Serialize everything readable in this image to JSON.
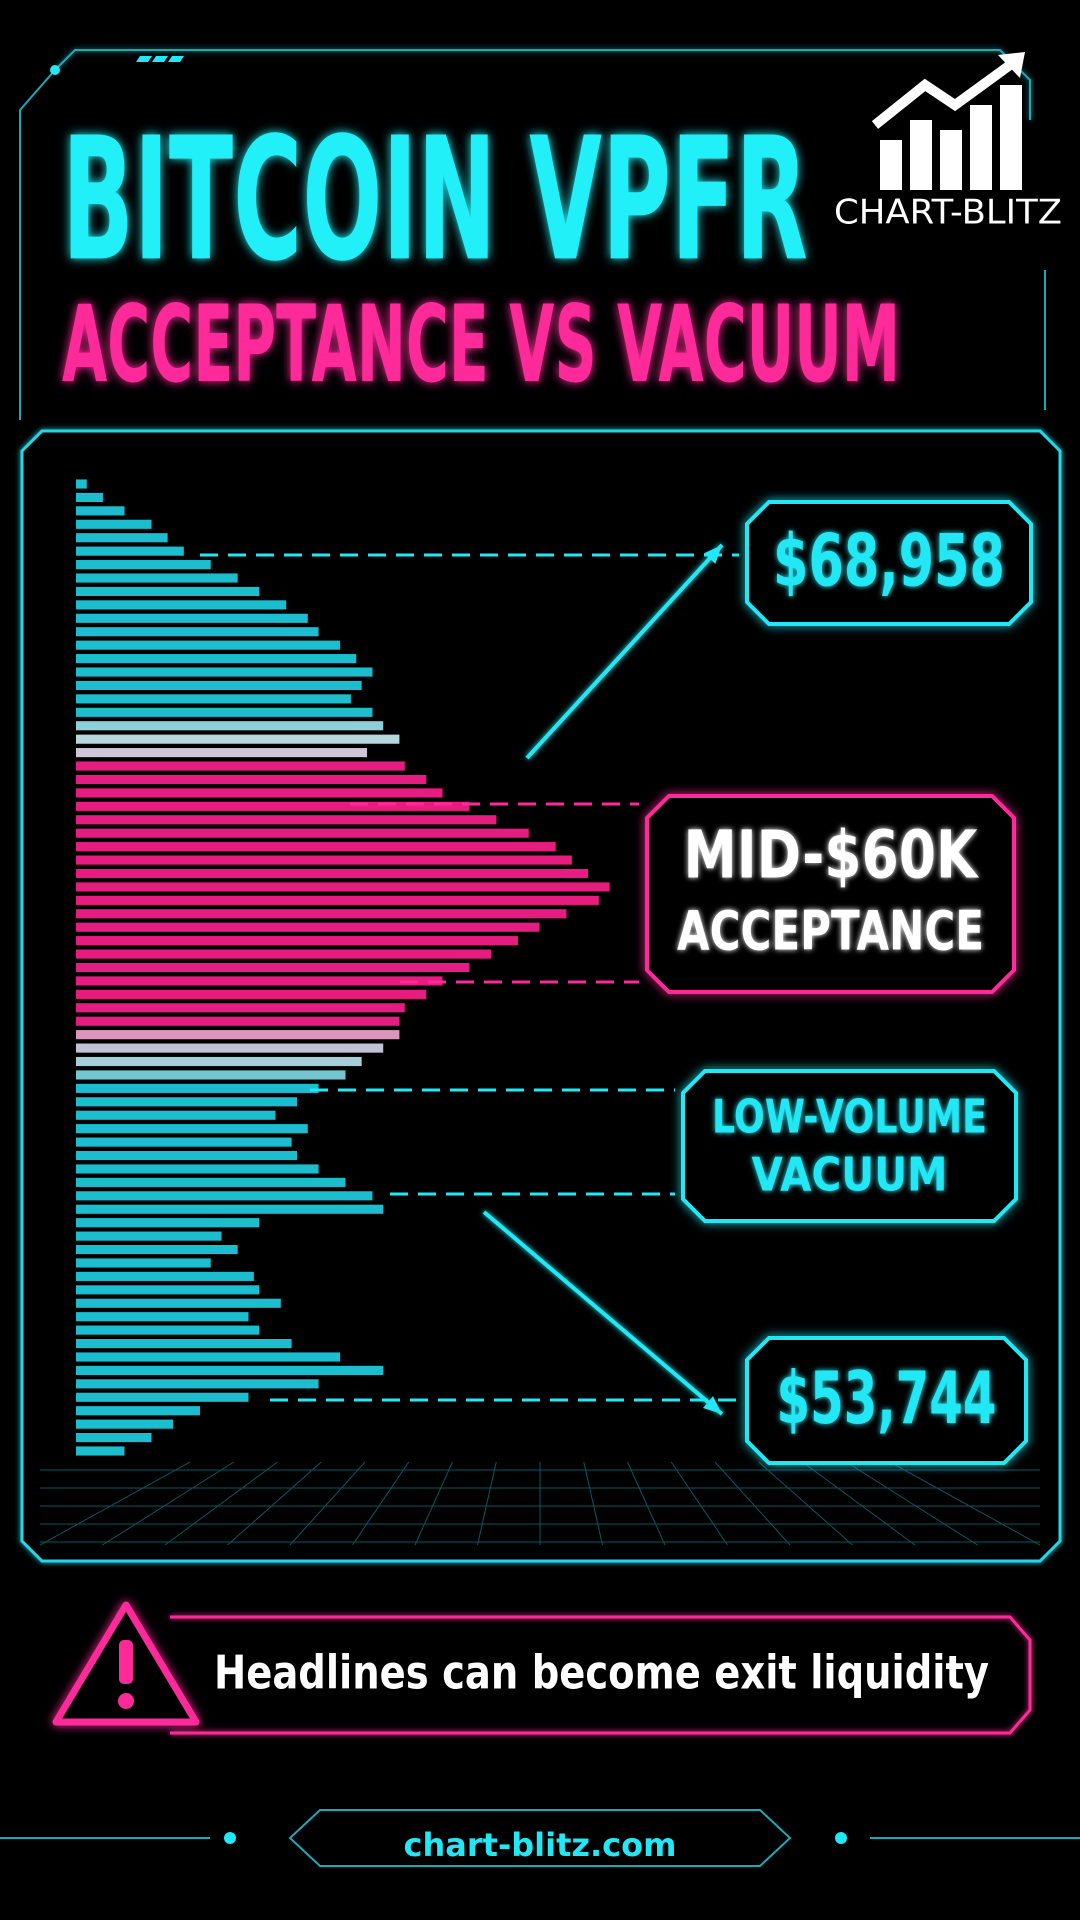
{
  "chart_data": {
    "type": "bar",
    "orientation": "horizontal",
    "title": "BITCOIN VPFR",
    "subtitle": "ACCEPTANCE VS VACUUM",
    "values": [
      2,
      5,
      9,
      14,
      17,
      20,
      25,
      30,
      34,
      39,
      43,
      45,
      49,
      52,
      55,
      53,
      51,
      55,
      57,
      60,
      54,
      61,
      65,
      68,
      73,
      78,
      84,
      89,
      92,
      95,
      99,
      97,
      91,
      86,
      82,
      77,
      73,
      68,
      65,
      61,
      60,
      60,
      57,
      53,
      50,
      45,
      41,
      37,
      43,
      40,
      41,
      45,
      50,
      55,
      57,
      34,
      27,
      30,
      25,
      33,
      34,
      38,
      32,
      34,
      40,
      49,
      57,
      45,
      32,
      23,
      18,
      14,
      9
    ],
    "bar_colors": [
      "#1fd2e4",
      "#1fd2e4",
      "#1fd2e4",
      "#1fd2e4",
      "#1fd2e4",
      "#1fd2e4",
      "#1fd2e4",
      "#1fd2e4",
      "#1fd2e4",
      "#1fd2e4",
      "#1fd2e4",
      "#1fd2e4",
      "#1fd2e4",
      "#1fd2e4",
      "#1fd2e4",
      "#1fd2e4",
      "#1fd2e4",
      "#1fd2e4",
      "#9fe7f0",
      "#c9eef3",
      "#e6dcef",
      "#ff1f8f",
      "#ff1f8f",
      "#ff1f8f",
      "#ff1f8f",
      "#ff1f8f",
      "#ff1f8f",
      "#ff1f8f",
      "#ff1f8f",
      "#ff1f8f",
      "#ff1f8f",
      "#ff1f8f",
      "#ff1f8f",
      "#ff1f8f",
      "#ff1f8f",
      "#ff1f8f",
      "#ff1f8f",
      "#ff1f8f",
      "#ff1f8f",
      "#ff1f8f",
      "#ff1f8f",
      "#f2a6d2",
      "#d6d6ee",
      "#b8e4f0",
      "#7fdbe9",
      "#1fd2e4",
      "#1fd2e4",
      "#1fd2e4",
      "#1fd2e4",
      "#1fd2e4",
      "#1fd2e4",
      "#1fd2e4",
      "#1fd2e4",
      "#1fd2e4",
      "#1fd2e4",
      "#1fd2e4",
      "#1fd2e4",
      "#1fd2e4",
      "#1fd2e4",
      "#1fd2e4",
      "#1fd2e4",
      "#1fd2e4",
      "#1fd2e4",
      "#1fd2e4",
      "#1fd2e4",
      "#1fd2e4",
      "#1fd2e4",
      "#1fd2e4",
      "#1fd2e4",
      "#1fd2e4",
      "#1fd2e4",
      "#1fd2e4",
      "#1fd2e4"
    ],
    "xlim": [
      0,
      100
    ],
    "annotations": [
      {
        "lines": [
          "$68,958"
        ],
        "color": "#22e8f5",
        "text_color": "#22e8f5"
      },
      {
        "lines": [
          "MID-$60K",
          "ACCEPTANCE"
        ],
        "color": "#ff2a9a",
        "text_color": "#ffffff"
      },
      {
        "lines": [
          "LOW-VOLUME",
          "VACUUM"
        ],
        "color": "#22e8f5",
        "text_color": "#22e8f5"
      },
      {
        "lines": [
          "$53,744"
        ],
        "color": "#22e8f5",
        "text_color": "#22e8f5"
      }
    ]
  },
  "logo": {
    "text": "CHART-BLITZ"
  },
  "warning": {
    "text": "Headlines can become exit liquidity"
  },
  "footer": {
    "url": "chart-blitz.com"
  }
}
